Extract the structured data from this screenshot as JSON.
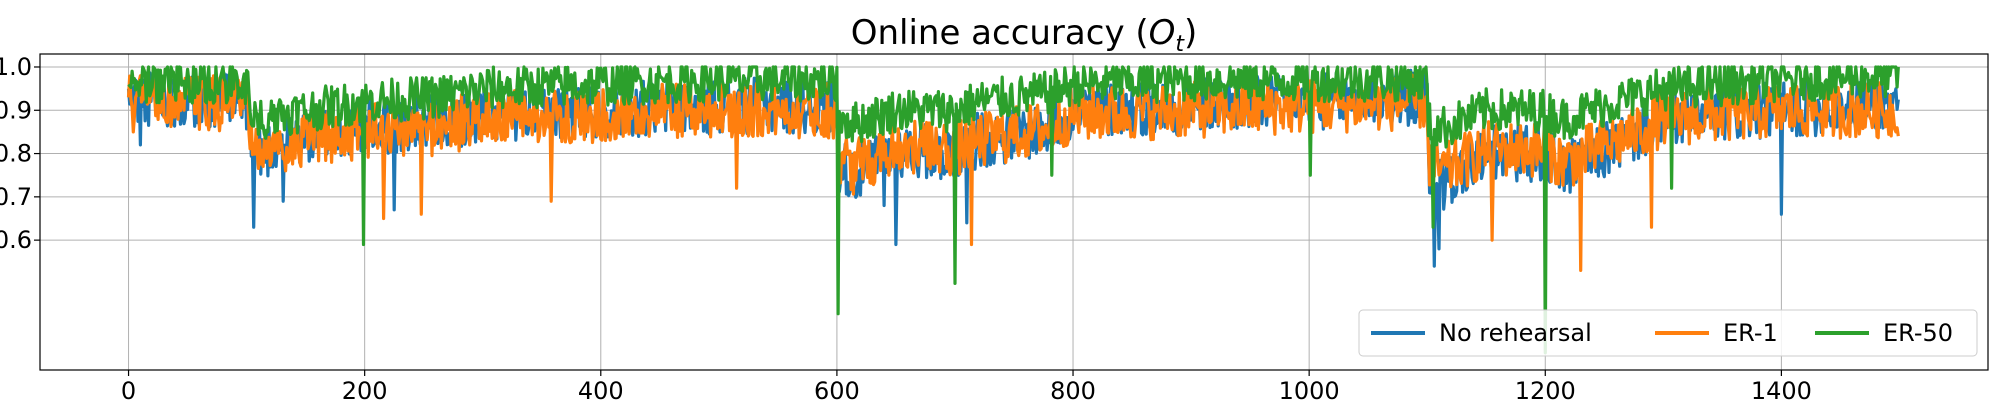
{
  "chart_data": {
    "type": "line",
    "title_prefix": "Online accuracy (",
    "title_symbol": "O",
    "title_subscript": "t",
    "title_suffix": ")",
    "xlabel": "",
    "ylabel": "",
    "xlim": [
      -75,
      1575
    ],
    "ylim": [
      0.3,
      1.03
    ],
    "x_ticks": [
      0,
      200,
      400,
      600,
      800,
      1000,
      1200,
      1400
    ],
    "y_ticks": [
      0.6,
      0.7,
      0.8,
      0.9,
      1.0
    ],
    "y_tick_labels": [
      "0.6",
      "0.7",
      "0.8",
      "0.9",
      "1.0"
    ],
    "grid": true,
    "legend_position": "lower-right",
    "task_boundaries": [
      100,
      200,
      600,
      700,
      1100,
      1200
    ],
    "series": [
      {
        "name": "No rehearsal",
        "color": "#1f77b4",
        "segments": [
          {
            "x": [
              0,
              100,
              105,
              150,
              200,
              260,
              300,
              400,
              500,
              600
            ],
            "y": [
              0.93,
              0.92,
              0.8,
              0.84,
              0.86,
              0.87,
              0.89,
              0.9,
              0.91,
              0.91
            ]
          },
          {
            "x": [
              600,
              615,
              650,
              700,
              720,
              780,
              800,
              900,
              1000,
              1100
            ],
            "y": [
              0.78,
              0.75,
              0.81,
              0.8,
              0.83,
              0.86,
              0.9,
              0.91,
              0.92,
              0.93
            ]
          },
          {
            "x": [
              1100,
              1115,
              1150,
              1200,
              1215,
              1260,
              1300,
              1400,
              1500
            ],
            "y": [
              0.76,
              0.73,
              0.8,
              0.8,
              0.76,
              0.82,
              0.88,
              0.9,
              0.92
            ]
          }
        ],
        "dips": [
          [
            10,
            0.82
          ],
          [
            106,
            0.63
          ],
          [
            131,
            0.69
          ],
          [
            225,
            0.67
          ],
          [
            640,
            0.68
          ],
          [
            650,
            0.59
          ],
          [
            710,
            0.64
          ],
          [
            1106,
            0.54
          ],
          [
            1110,
            0.58
          ],
          [
            1200,
            0.66
          ],
          [
            1400,
            0.66
          ]
        ]
      },
      {
        "name": "ER-1",
        "color": "#ff7f0e",
        "segments": [
          {
            "x": [
              0,
              100,
              105,
              150,
              200,
              260,
              300,
              400,
              500,
              600
            ],
            "y": [
              0.93,
              0.91,
              0.8,
              0.83,
              0.85,
              0.86,
              0.88,
              0.89,
              0.9,
              0.9
            ]
          },
          {
            "x": [
              600,
              615,
              650,
              700,
              720,
              780,
              800,
              900,
              1000,
              1100
            ],
            "y": [
              0.79,
              0.77,
              0.82,
              0.81,
              0.83,
              0.86,
              0.89,
              0.9,
              0.91,
              0.92
            ]
          },
          {
            "x": [
              1100,
              1115,
              1150,
              1200,
              1215,
              1260,
              1300,
              1400,
              1500
            ],
            "y": [
              0.78,
              0.76,
              0.81,
              0.81,
              0.78,
              0.83,
              0.88,
              0.9,
              0.9
            ]
          }
        ],
        "dips": [
          [
            4,
            0.85
          ],
          [
            216,
            0.65
          ],
          [
            248,
            0.66
          ],
          [
            358,
            0.69
          ],
          [
            515,
            0.72
          ],
          [
            714,
            0.59
          ],
          [
            1155,
            0.6
          ],
          [
            1230,
            0.53
          ],
          [
            1290,
            0.63
          ],
          [
            1497,
            0.85
          ]
        ]
      },
      {
        "name": "ER-50",
        "color": "#2ca02c",
        "segments": [
          {
            "x": [
              0,
              100,
              105,
              150,
              200,
              260,
              300,
              400,
              500,
              600
            ],
            "y": [
              0.97,
              0.96,
              0.88,
              0.9,
              0.92,
              0.93,
              0.95,
              0.96,
              0.97,
              0.97
            ]
          },
          {
            "x": [
              600,
              615,
              650,
              700,
              720,
              780,
              800,
              900,
              1000,
              1100
            ],
            "y": [
              0.89,
              0.87,
              0.9,
              0.9,
              0.92,
              0.94,
              0.96,
              0.97,
              0.97,
              0.97
            ]
          },
          {
            "x": [
              1100,
              1115,
              1150,
              1200,
              1215,
              1260,
              1300,
              1400,
              1500
            ],
            "y": [
              0.87,
              0.86,
              0.9,
              0.9,
              0.88,
              0.92,
              0.95,
              0.97,
              0.98
            ]
          }
        ],
        "dips": [
          [
            199,
            0.59
          ],
          [
            601,
            0.43
          ],
          [
            700,
            0.5
          ],
          [
            782,
            0.75
          ],
          [
            1001,
            0.75
          ],
          [
            1105,
            0.63
          ],
          [
            1200,
            0.34
          ],
          [
            1307,
            0.72
          ]
        ]
      }
    ]
  }
}
